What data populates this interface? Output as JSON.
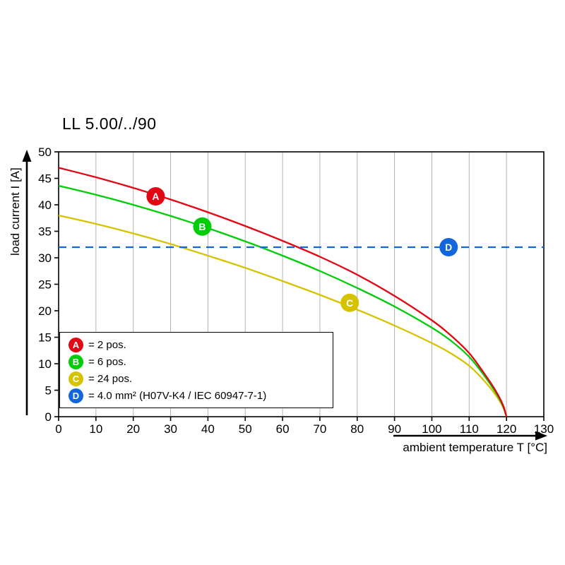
{
  "chart_data": {
    "type": "line",
    "title": "LL 5.00/../90",
    "xlabel": "ambient temperature T [°C]",
    "ylabel": "load current I [A]",
    "xlim": [
      0,
      130
    ],
    "ylim": [
      0,
      50
    ],
    "xticks": [
      0,
      10,
      20,
      30,
      40,
      50,
      60,
      70,
      80,
      90,
      100,
      110,
      120,
      130
    ],
    "yticks": [
      0,
      5,
      10,
      15,
      20,
      25,
      30,
      35,
      40,
      45,
      50
    ],
    "grid": "vertical-only",
    "grid_color": "#b4b4b4",
    "legend_position": "lower-left",
    "series": [
      {
        "name": "A",
        "legend_label": "= 2 pos.",
        "color": "#e30613",
        "line_style": "solid",
        "x": [
          0,
          10,
          20,
          30,
          40,
          50,
          60,
          70,
          80,
          90,
          100,
          105,
          110,
          114,
          117,
          119,
          120
        ],
        "y": [
          47,
          45.2,
          43.2,
          41,
          38.6,
          36,
          33.2,
          30.2,
          26.8,
          22.8,
          18.2,
          15.4,
          12,
          8.2,
          5,
          2.3,
          0
        ]
      },
      {
        "name": "B",
        "legend_label": "= 6 pos.",
        "color": "#00cc07",
        "line_style": "solid",
        "x": [
          0,
          10,
          20,
          30,
          40,
          50,
          60,
          70,
          80,
          90,
          100,
          105,
          110,
          114,
          117,
          119,
          120
        ],
        "y": [
          43.6,
          41.9,
          40,
          37.9,
          35.6,
          33.1,
          30.4,
          27.5,
          24.3,
          20.8,
          16.8,
          14.4,
          11.3,
          7.8,
          4.7,
          2.1,
          0
        ]
      },
      {
        "name": "C",
        "legend_label": "= 24 pos.",
        "color": "#d6c300",
        "line_style": "solid",
        "x": [
          0,
          10,
          20,
          30,
          40,
          50,
          60,
          70,
          80,
          90,
          100,
          105,
          110,
          114,
          117,
          119,
          120
        ],
        "y": [
          38,
          36.4,
          34.6,
          32.6,
          30.4,
          28.1,
          25.6,
          23,
          20.2,
          17.2,
          13.9,
          12,
          9.6,
          6.8,
          4.2,
          1.9,
          0
        ]
      },
      {
        "name": "D",
        "legend_label": "= 4.0 mm² (H07V-K4 / IEC 60947-7-1)",
        "color": "#1166dd",
        "line_style": "dashed",
        "x": [
          0,
          130
        ],
        "y": [
          32,
          32
        ]
      }
    ],
    "markers": [
      {
        "series": "A",
        "x": 26,
        "y": 41.6
      },
      {
        "series": "B",
        "x": 38.5,
        "y": 35.9
      },
      {
        "series": "C",
        "x": 78,
        "y": 21.5
      },
      {
        "series": "D",
        "x": 104.5,
        "y": 32
      }
    ]
  }
}
